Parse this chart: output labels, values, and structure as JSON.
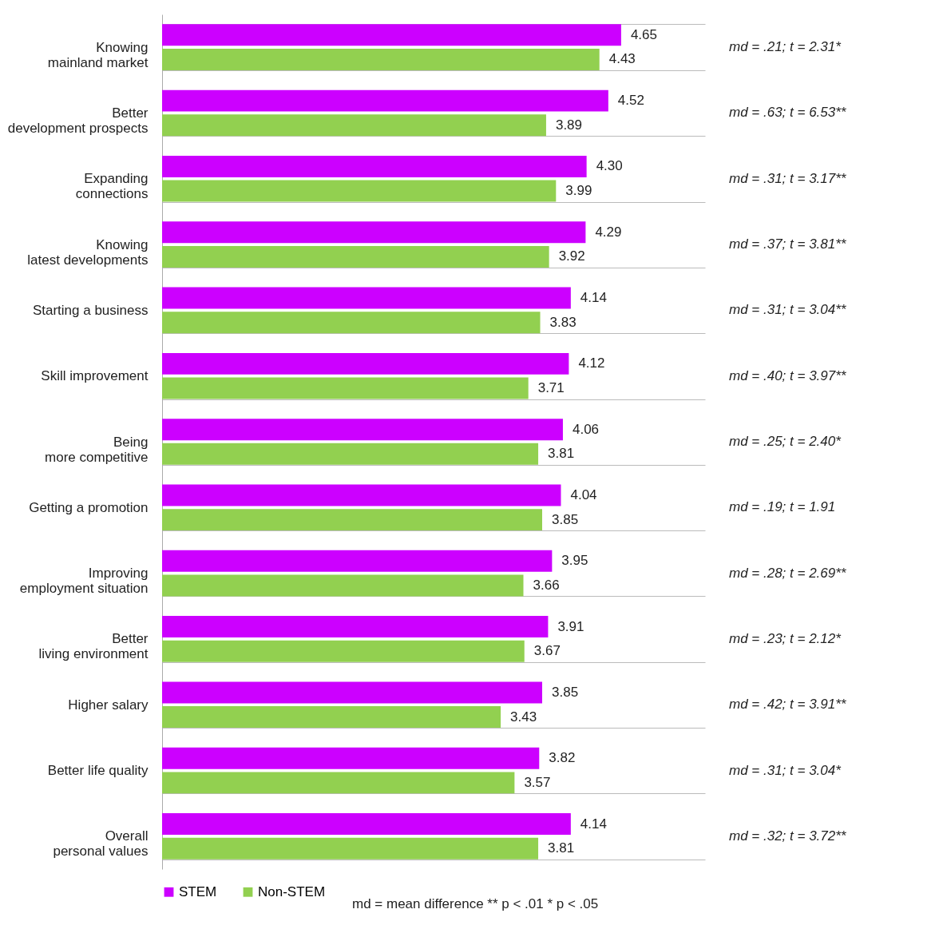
{
  "chart_data": {
    "type": "bar",
    "orientation": "horizontal",
    "categories": [
      "Knowing mainland market",
      "Better development prospects",
      "Expanding connections",
      "Knowing latest developments",
      "Starting a business",
      "Skill improvement",
      "Being more competitive",
      "Getting a promotion",
      "Improving employment situation",
      "Better living environment",
      "Higher salary",
      "Better life quality",
      "Overall personal values"
    ],
    "series": [
      {
        "name": "STEM",
        "color": "#cc00ff",
        "values": [
          4.65,
          4.52,
          4.3,
          4.29,
          4.14,
          4.12,
          4.06,
          4.04,
          3.95,
          3.91,
          3.85,
          3.82,
          4.14
        ],
        "value_labels": [
          "4.65",
          "4.52",
          "4.30",
          "4.29",
          "4.14",
          "4.12",
          "4.06",
          "4.04",
          "3.95",
          "3.91",
          "3.85",
          "3.82",
          "4.14"
        ]
      },
      {
        "name": "Non-STEM",
        "color": "#92d050",
        "values": [
          4.43,
          3.89,
          3.99,
          3.92,
          3.83,
          3.71,
          3.81,
          3.85,
          3.66,
          3.67,
          3.43,
          3.57,
          3.81
        ],
        "value_labels": [
          "4.43",
          "3.89",
          "3.99",
          "3.92",
          "3.83",
          "3.71",
          "3.81",
          "3.85",
          "3.66",
          "3.67",
          "3.43",
          "3.57",
          "3.81"
        ]
      }
    ],
    "xlim": [
      0,
      5.5
    ],
    "grid": "y",
    "legend": "bottom",
    "annotations": [
      "md = .21; t = 2.31*",
      "md = .63; t = 6.53**",
      "md = .31; t = 3.17**",
      "md = .37; t = 3.81**",
      "md = .31; t = 3.04**",
      "md = .40; t = 3.97**",
      "md = .25; t = 2.40*",
      "md = .19; t = 1.91",
      "md = .28; t = 2.69**",
      "md = .23; t = 2.12*",
      "md = .42; t = 3.91**",
      "md = .31; t = 3.04*",
      "md = .32; t = 3.72**",
      "md = mean difference    ** p < .01    * p < .05"
    ]
  }
}
